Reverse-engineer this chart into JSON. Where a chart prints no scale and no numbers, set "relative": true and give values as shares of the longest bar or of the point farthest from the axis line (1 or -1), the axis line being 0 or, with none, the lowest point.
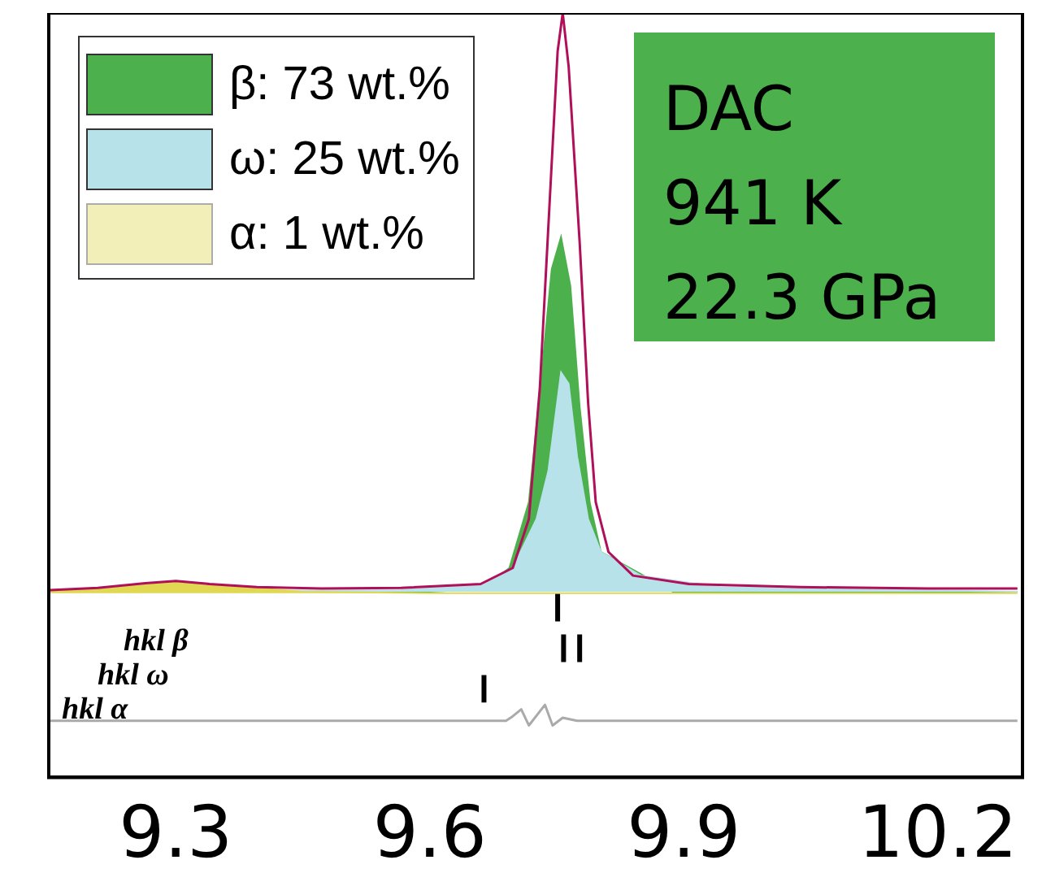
{
  "chart_data": {
    "type": "area",
    "relative": true,
    "xlim": [
      9.15,
      10.3
    ],
    "xticks": [
      9.3,
      9.6,
      9.9,
      10.2
    ],
    "tick_labels": "x",
    "legend": "top left",
    "grid": false,
    "annotations": [
      "DAC\n941 K\n22.3 GPa",
      "hkl β",
      "hkl ω",
      "hkl α"
    ],
    "series": [
      {
        "name": "β: 73 wt.%",
        "color": "#4cb04c",
        "x": [
          9.151,
          9.6,
          9.66,
          9.694,
          9.717,
          9.73,
          9.744,
          9.755,
          9.766,
          9.777,
          9.789,
          9.802,
          9.887,
          10.0,
          10.294
        ],
        "values": [
          0.243,
          0.243,
          0.246,
          0.274,
          0.36,
          0.505,
          0.665,
          0.707,
          0.643,
          0.485,
          0.359,
          0.295,
          0.243,
          0.243,
          0.243
        ]
      },
      {
        "name": "ω: 25 wt.%",
        "color": "#b8e2ea",
        "x": [
          9.151,
          9.566,
          9.66,
          9.698,
          9.726,
          9.74,
          9.755,
          9.764,
          9.774,
          9.787,
          9.802,
          9.849,
          9.943,
          10.294
        ],
        "values": [
          0.243,
          0.245,
          0.253,
          0.274,
          0.338,
          0.401,
          0.53,
          0.515,
          0.42,
          0.338,
          0.295,
          0.264,
          0.249,
          0.243
        ]
      },
      {
        "name": "α: 1 wt.%",
        "color": "#e0d850",
        "x": [
          9.151,
          9.22,
          9.3,
          9.38,
          9.45,
          9.6,
          10.294
        ],
        "values": [
          0.243,
          0.247,
          0.257,
          0.249,
          0.243,
          0.241,
          0.241
        ]
      },
      {
        "color": "#b0105a",
        "type": "line",
        "x": [
          9.151,
          9.208,
          9.264,
          9.3,
          9.34,
          9.396,
          9.472,
          9.566,
          9.66,
          9.698,
          9.717,
          9.73,
          9.74,
          9.751,
          9.757,
          9.764,
          9.777,
          9.787,
          9.796,
          9.811,
          9.84,
          9.906,
          10.038,
          10.189,
          10.294
        ],
        "values": [
          0.245,
          0.248,
          0.254,
          0.257,
          0.253,
          0.249,
          0.247,
          0.248,
          0.253,
          0.274,
          0.338,
          0.51,
          0.72,
          0.95,
          1,
          0.93,
          0.7,
          0.49,
          0.36,
          0.295,
          0.264,
          0.253,
          0.249,
          0.247,
          0.247
        ]
      },
      {
        "color": "#aaaaaa",
        "type": "line",
        "x": [
          9.151,
          9.6,
          9.69,
          9.698,
          9.708,
          9.717,
          9.736,
          9.745,
          9.757,
          9.774,
          9.8,
          10.294
        ],
        "values": [
          0.074,
          0.074,
          0.074,
          0.08,
          0.089,
          0.068,
          0.095,
          0.068,
          0.078,
          0.074,
          0.074,
          0.074
        ]
      },
      {
        "color": "#000000",
        "type": "line",
        "x": [
          9.751,
          9.751
        ],
        "values": [
          0.204,
          0.24
        ]
      },
      {
        "color": "#000000",
        "type": "line",
        "x": [
          9.758,
          9.758
        ],
        "values": [
          0.151,
          0.187
        ]
      },
      {
        "color": "#000000",
        "type": "line",
        "x": [
          9.777,
          9.777
        ],
        "values": [
          0.151,
          0.187
        ]
      },
      {
        "color": "#000000",
        "type": "line",
        "x": [
          9.664,
          9.664
        ],
        "values": [
          0.098,
          0.134
        ]
      }
    ]
  }
}
